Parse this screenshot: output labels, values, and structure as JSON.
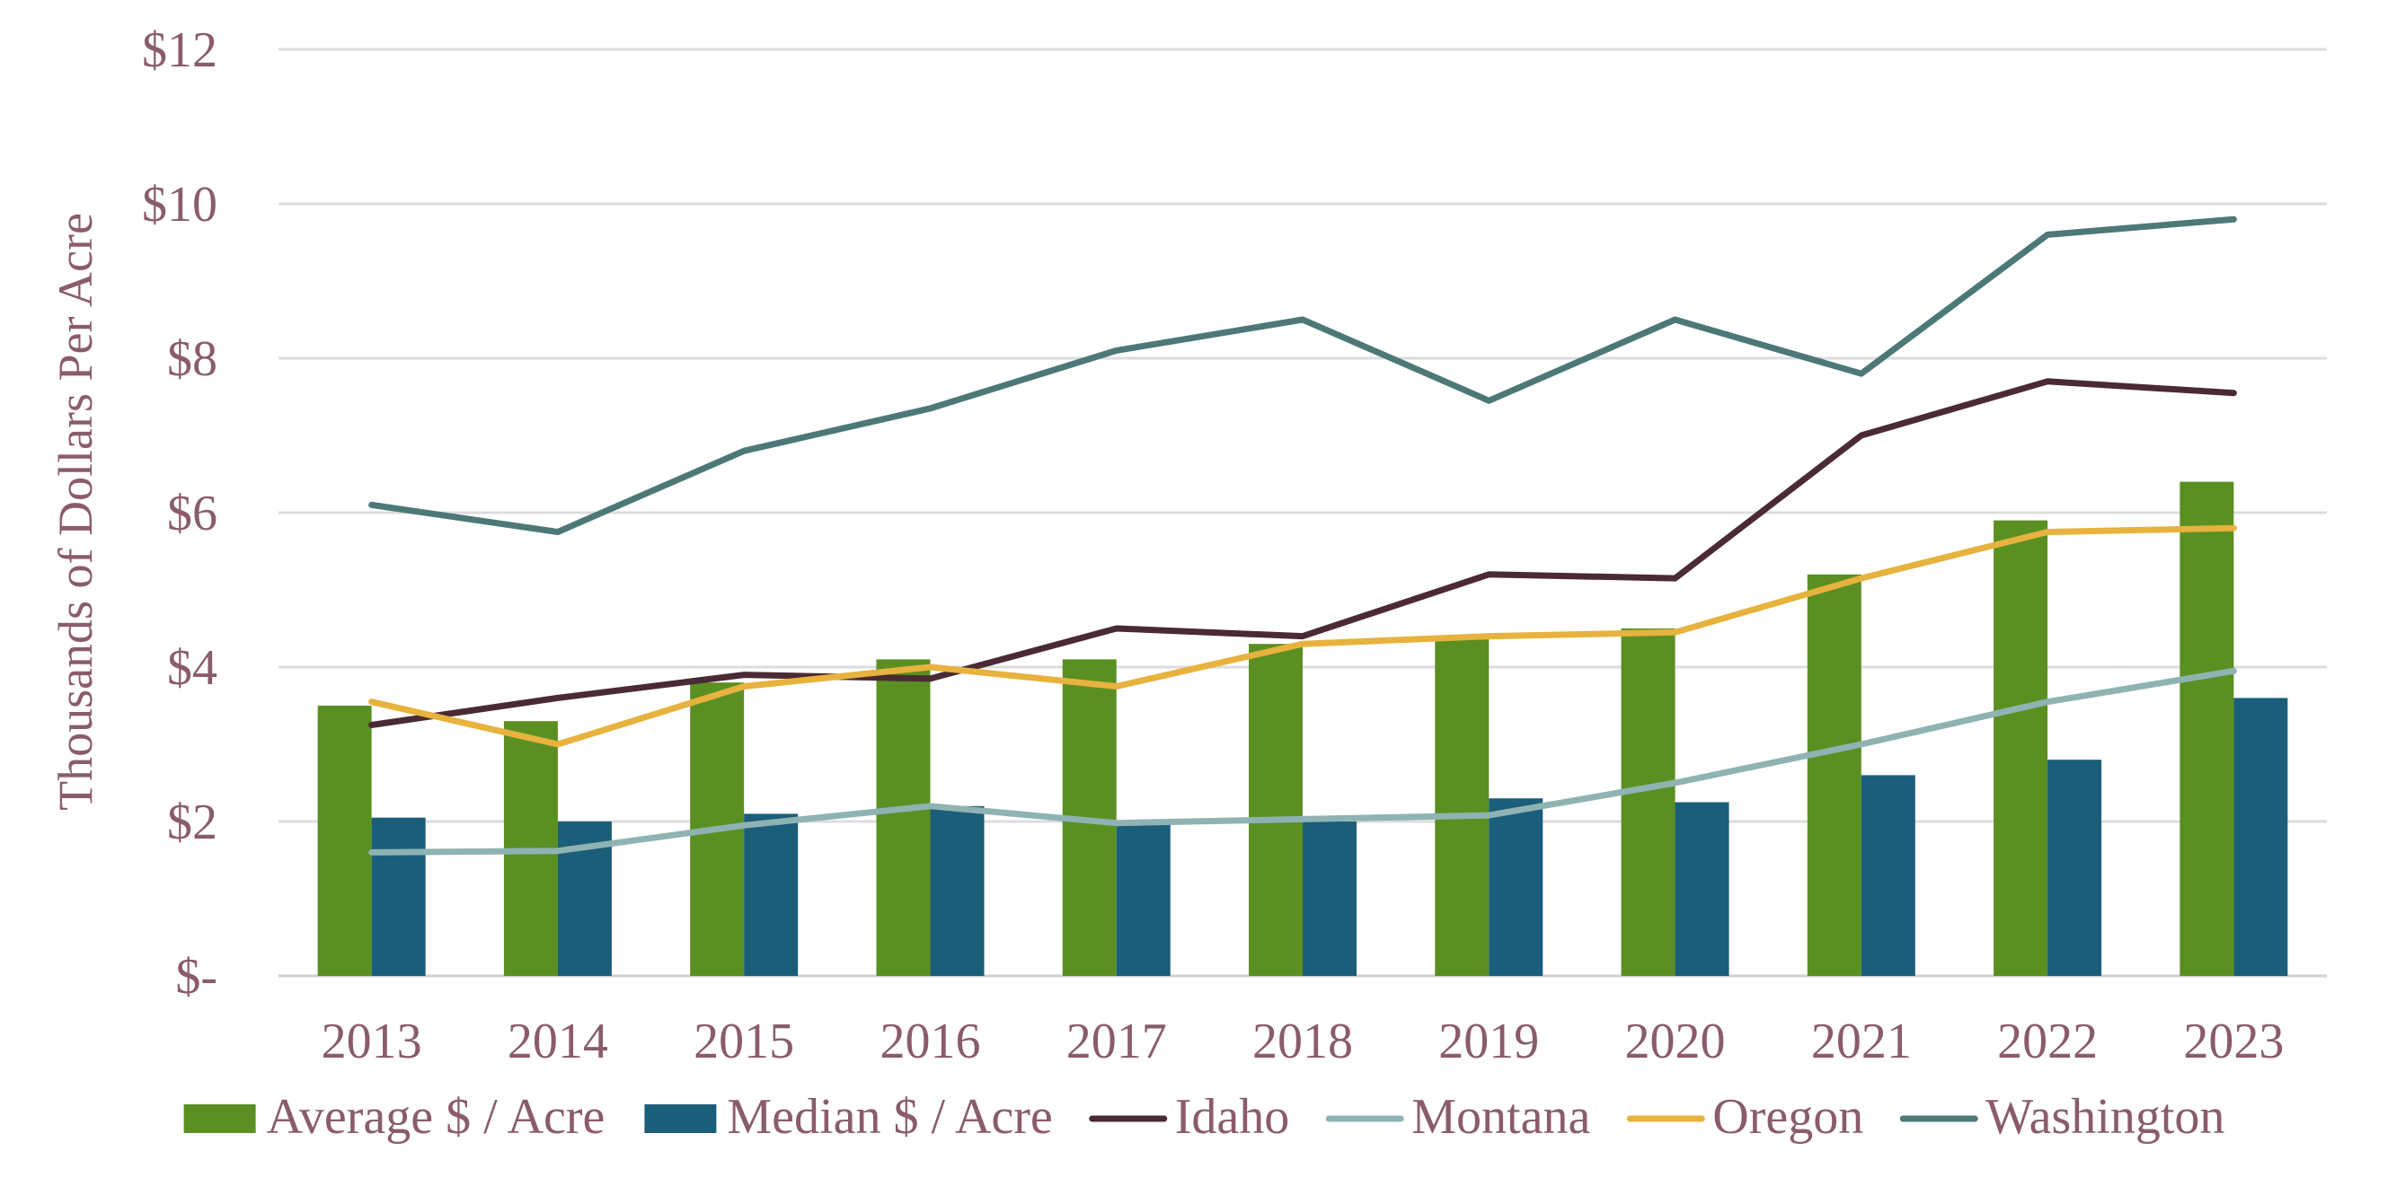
{
  "chart_data": {
    "type": "bar",
    "title": "",
    "xlabel": "",
    "ylabel": "Thousands of Dollars Per Acre",
    "ylim": [
      0,
      12
    ],
    "yticks": [
      0,
      2,
      4,
      6,
      8,
      10,
      12
    ],
    "ytick_labels": [
      "$-",
      "$2",
      "$4",
      "$6",
      "$8",
      "$10",
      "$12"
    ],
    "grid": true,
    "legend_position": "bottom",
    "categories": [
      "2013",
      "2014",
      "2015",
      "2016",
      "2017",
      "2018",
      "2019",
      "2020",
      "2021",
      "2022",
      "2023"
    ],
    "bar_series": [
      {
        "name": "Average $ / Acre",
        "color": "#5b8f22",
        "values": [
          3.5,
          3.3,
          3.8,
          4.1,
          4.1,
          4.3,
          4.4,
          4.5,
          5.2,
          5.9,
          6.4
        ]
      },
      {
        "name": "Median $ / Acre",
        "color": "#1b5e7a",
        "values": [
          2.05,
          2.0,
          2.1,
          2.2,
          2.0,
          2.0,
          2.3,
          2.25,
          2.6,
          2.8,
          3.6
        ]
      }
    ],
    "line_series": [
      {
        "name": "Idaho",
        "color": "#4a2a33",
        "values": [
          3.25,
          3.6,
          3.9,
          3.85,
          4.5,
          4.4,
          5.2,
          5.15,
          7.0,
          7.7,
          7.55
        ]
      },
      {
        "name": "Montana",
        "color": "#8fb3b3",
        "values": [
          1.6,
          1.62,
          1.95,
          2.2,
          1.98,
          2.03,
          2.08,
          2.5,
          3.0,
          3.55,
          3.95
        ]
      },
      {
        "name": "Oregon",
        "color": "#e7b23d",
        "values": [
          3.55,
          3.0,
          3.75,
          4.0,
          3.75,
          4.3,
          4.4,
          4.45,
          5.15,
          5.75,
          5.8
        ]
      },
      {
        "name": "Washington",
        "color": "#4d7878",
        "values": [
          6.1,
          5.75,
          6.8,
          7.35,
          8.1,
          8.5,
          7.45,
          8.5,
          7.8,
          9.6,
          9.8
        ]
      }
    ]
  }
}
